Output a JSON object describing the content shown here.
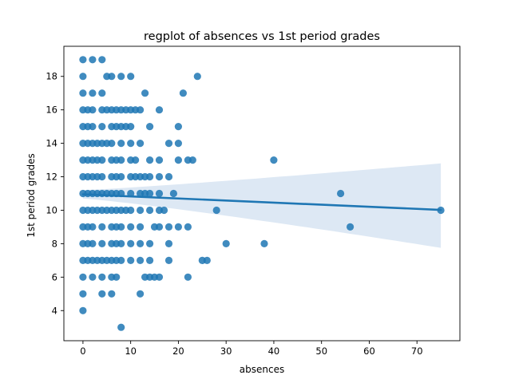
{
  "chart_data": {
    "type": "scatter",
    "title": "regplot of absences vs 1st period grades",
    "xlabel": "absences",
    "ylabel": "1st period grades",
    "xlim": [
      -4,
      79
    ],
    "ylim": [
      2.2,
      19.8
    ],
    "xticks": [
      0,
      10,
      20,
      30,
      40,
      50,
      60,
      70
    ],
    "yticks": [
      4,
      6,
      8,
      10,
      12,
      14,
      16,
      18
    ],
    "grid": false,
    "point_color": "#1f77b4",
    "line_color": "#1f77b4",
    "band_color": "#c6d9ec",
    "regression": {
      "x": [
        0,
        75
      ],
      "y": [
        10.95,
        10.02
      ],
      "ci_upper": [
        11.2,
        12.8
      ],
      "ci_lower": [
        10.7,
        7.75
      ]
    },
    "points": [
      [
        0,
        19
      ],
      [
        2,
        19
      ],
      [
        4,
        19
      ],
      [
        0,
        18
      ],
      [
        5,
        18
      ],
      [
        6,
        18
      ],
      [
        8,
        18
      ],
      [
        10,
        18
      ],
      [
        24,
        18
      ],
      [
        0,
        17
      ],
      [
        2,
        17
      ],
      [
        4,
        17
      ],
      [
        13,
        17
      ],
      [
        21,
        17
      ],
      [
        0,
        16
      ],
      [
        1,
        16
      ],
      [
        2,
        16
      ],
      [
        4,
        16
      ],
      [
        5,
        16
      ],
      [
        6,
        16
      ],
      [
        7,
        16
      ],
      [
        8,
        16
      ],
      [
        9,
        16
      ],
      [
        10,
        16
      ],
      [
        11,
        16
      ],
      [
        12,
        16
      ],
      [
        16,
        16
      ],
      [
        0,
        15
      ],
      [
        1,
        15
      ],
      [
        2,
        15
      ],
      [
        4,
        15
      ],
      [
        6,
        15
      ],
      [
        7,
        15
      ],
      [
        8,
        15
      ],
      [
        9,
        15
      ],
      [
        10,
        15
      ],
      [
        14,
        15
      ],
      [
        20,
        15
      ],
      [
        0,
        14
      ],
      [
        1,
        14
      ],
      [
        2,
        14
      ],
      [
        3,
        14
      ],
      [
        4,
        14
      ],
      [
        5,
        14
      ],
      [
        6,
        14
      ],
      [
        8,
        14
      ],
      [
        10,
        14
      ],
      [
        12,
        14
      ],
      [
        18,
        14
      ],
      [
        20,
        14
      ],
      [
        0,
        13
      ],
      [
        1,
        13
      ],
      [
        2,
        13
      ],
      [
        3,
        13
      ],
      [
        4,
        13
      ],
      [
        6,
        13
      ],
      [
        7,
        13
      ],
      [
        8,
        13
      ],
      [
        10,
        13
      ],
      [
        11,
        13
      ],
      [
        14,
        13
      ],
      [
        16,
        13
      ],
      [
        20,
        13
      ],
      [
        22,
        13
      ],
      [
        23,
        13
      ],
      [
        40,
        13
      ],
      [
        0,
        12
      ],
      [
        1,
        12
      ],
      [
        2,
        12
      ],
      [
        3,
        12
      ],
      [
        4,
        12
      ],
      [
        6,
        12
      ],
      [
        7,
        12
      ],
      [
        8,
        12
      ],
      [
        10,
        12
      ],
      [
        11,
        12
      ],
      [
        12,
        12
      ],
      [
        13,
        12
      ],
      [
        14,
        12
      ],
      [
        16,
        12
      ],
      [
        18,
        12
      ],
      [
        0,
        11
      ],
      [
        1,
        11
      ],
      [
        2,
        11
      ],
      [
        3,
        11
      ],
      [
        4,
        11
      ],
      [
        5,
        11
      ],
      [
        6,
        11
      ],
      [
        7,
        11
      ],
      [
        8,
        11
      ],
      [
        10,
        11
      ],
      [
        12,
        11
      ],
      [
        13,
        11
      ],
      [
        14,
        11
      ],
      [
        16,
        11
      ],
      [
        19,
        11
      ],
      [
        54,
        11
      ],
      [
        0,
        10
      ],
      [
        1,
        10
      ],
      [
        2,
        10
      ],
      [
        3,
        10
      ],
      [
        4,
        10
      ],
      [
        5,
        10
      ],
      [
        6,
        10
      ],
      [
        7,
        10
      ],
      [
        8,
        10
      ],
      [
        9,
        10
      ],
      [
        10,
        10
      ],
      [
        12,
        10
      ],
      [
        14,
        10
      ],
      [
        16,
        10
      ],
      [
        17,
        10
      ],
      [
        28,
        10
      ],
      [
        75,
        10
      ],
      [
        0,
        9
      ],
      [
        1,
        9
      ],
      [
        2,
        9
      ],
      [
        4,
        9
      ],
      [
        6,
        9
      ],
      [
        7,
        9
      ],
      [
        8,
        9
      ],
      [
        10,
        9
      ],
      [
        12,
        9
      ],
      [
        15,
        9
      ],
      [
        16,
        9
      ],
      [
        18,
        9
      ],
      [
        20,
        9
      ],
      [
        22,
        9
      ],
      [
        56,
        9
      ],
      [
        0,
        8
      ],
      [
        1,
        8
      ],
      [
        2,
        8
      ],
      [
        4,
        8
      ],
      [
        6,
        8
      ],
      [
        7,
        8
      ],
      [
        8,
        8
      ],
      [
        10,
        8
      ],
      [
        12,
        8
      ],
      [
        14,
        8
      ],
      [
        18,
        8
      ],
      [
        30,
        8
      ],
      [
        38,
        8
      ],
      [
        0,
        7
      ],
      [
        1,
        7
      ],
      [
        2,
        7
      ],
      [
        3,
        7
      ],
      [
        4,
        7
      ],
      [
        5,
        7
      ],
      [
        6,
        7
      ],
      [
        7,
        7
      ],
      [
        8,
        7
      ],
      [
        10,
        7
      ],
      [
        12,
        7
      ],
      [
        14,
        7
      ],
      [
        18,
        7
      ],
      [
        25,
        7
      ],
      [
        26,
        7
      ],
      [
        0,
        6
      ],
      [
        2,
        6
      ],
      [
        4,
        6
      ],
      [
        6,
        6
      ],
      [
        7,
        6
      ],
      [
        13,
        6
      ],
      [
        14,
        6
      ],
      [
        15,
        6
      ],
      [
        16,
        6
      ],
      [
        22,
        6
      ],
      [
        0,
        5
      ],
      [
        4,
        5
      ],
      [
        6,
        5
      ],
      [
        12,
        5
      ],
      [
        0,
        4
      ],
      [
        8,
        3
      ]
    ]
  }
}
